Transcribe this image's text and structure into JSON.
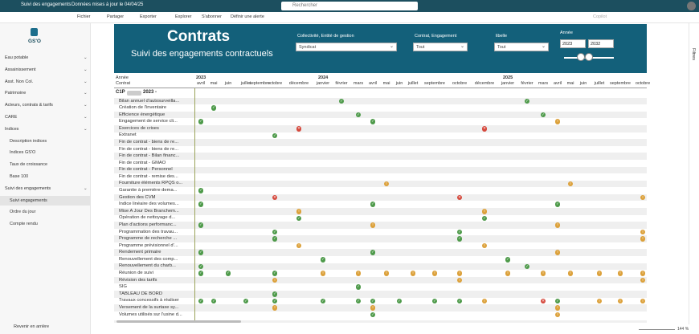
{
  "topbar": {
    "app": "Suivi des engagements",
    "updated": "Données mises à jour le 04/04/25",
    "search": "Rechercher"
  },
  "toolbar": {
    "items": [
      "Fichier",
      "Partager",
      "Exporter",
      "Explorer",
      "S'abonner",
      "Définir une alerte"
    ],
    "copilot": "Copilot"
  },
  "nav": {
    "logo": "GS'O",
    "items": [
      {
        "label": "Eau potable"
      },
      {
        "label": "Assainissement"
      },
      {
        "label": "Asst. Non Col."
      },
      {
        "label": "Patrimoine"
      },
      {
        "label": "Acteurs, contrats & tarifs"
      },
      {
        "label": "CARE"
      },
      {
        "label": "Indices",
        "children": [
          "Description indices",
          "Indices GS'O",
          "Taux de croissance",
          "Base 100"
        ]
      },
      {
        "label": "Suivi des engagements",
        "children": [
          "Suivi engagements",
          "Ordre du jour",
          "Compte rendu"
        ]
      }
    ],
    "back": "Revenir en arrière"
  },
  "banner": {
    "title": "Contrats",
    "subtitle": "Suivi des engagements contractuels",
    "filters": [
      {
        "label": "Collectivité, Entité de gestion",
        "value": "Syndicat"
      },
      {
        "label": "Contrat, Engagement",
        "value": "Tout"
      },
      {
        "label": "libelle",
        "value": "Tout"
      }
    ],
    "year": {
      "label": "Année",
      "from": "2023",
      "to": "2032"
    }
  },
  "matrix": {
    "row_header": [
      "Année",
      "Contrat"
    ],
    "years": [
      "2023",
      "2024",
      "2025"
    ],
    "months": [
      "avril",
      "mai",
      "juin",
      "juillet",
      "septembre",
      "octobre",
      "décembre",
      "janvier",
      "février",
      "mars",
      "avril",
      "mai",
      "juin",
      "juillet",
      "septembre",
      "octobre",
      "décembre",
      "janvier",
      "février",
      "mars",
      "avril",
      "mai",
      "juin",
      "juillet",
      "septembre",
      "octobre"
    ],
    "group": [
      "C1P",
      "2023 -"
    ],
    "rows": [
      "Bilan annuel d'autosurveilla...",
      "Création de l'inventaire",
      "Efficience énergétique",
      "Engagement de service cli...",
      "Exercices de crises",
      "Extranet",
      "Fin de contrat - biens de re...",
      "Fin de contrat - biens de re...",
      "Fin de contrat - Bilan financ...",
      "Fin de contrat - GMAO",
      "Fin de contrat - Personnel",
      "Fin de contrat - remise des...",
      "Fourniture éléments RPQS o...",
      "Garantie à première dema...",
      "Gestion des CVM",
      "Indice linéaire des volumes...",
      "Mise A Jour Des Branchem...",
      "Opération de nettoyage d...",
      "Plan d'actions performanc...",
      "Programmation des travau...",
      "Programme de recherche ...",
      "Programme prévisionnel d'...",
      "Rendement primaire",
      "Renouvellement des comp...",
      "Renouvellement du charb...",
      "Réunion de suivi",
      "Révision des tarifs",
      "SIG",
      "TABLEAU DE BORD",
      "Travaux concessifs à réaliser",
      "Versement de la surtaxe sy...",
      "Volumes utilisés sur l'usine d..."
    ]
  },
  "filters_pane": "Filtres",
  "zoom": "144 %"
}
